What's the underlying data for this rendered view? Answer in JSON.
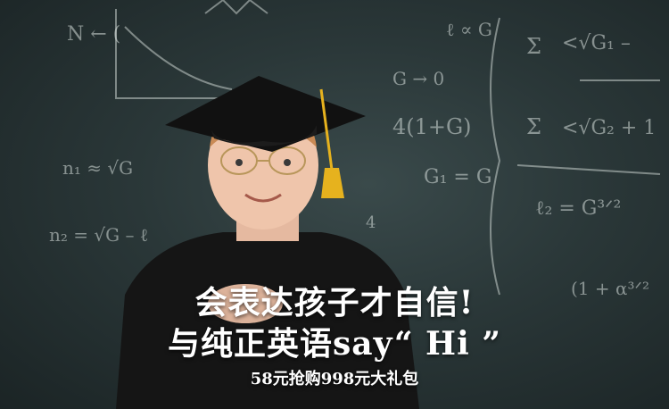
{
  "banner": {
    "headline_line1": "会表达孩子才自信!",
    "headline_line2": "与纯正英语say“ Hi ”",
    "promo": "58元抢购998元大礼包"
  },
  "colors": {
    "chalkboard": "#2a3738",
    "text": "#ffffff",
    "gown": "#1a1a1a",
    "tassel": "#e6b21e"
  }
}
